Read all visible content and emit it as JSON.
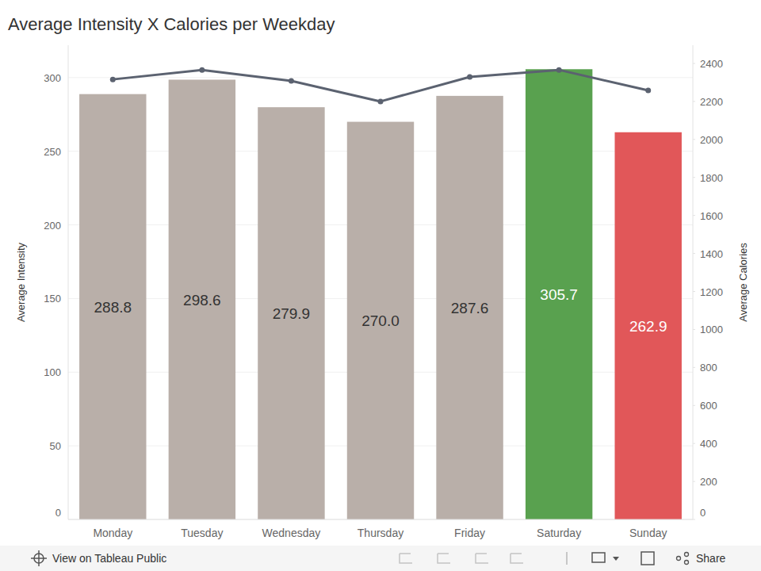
{
  "chart_data": {
    "type": "bar",
    "title": "Average Intensity X Calories per Weekday",
    "ylabel": "Average Intensity",
    "y2label": "Average Calories",
    "categories": [
      "Monday",
      "Tuesday",
      "Wednesday",
      "Thursday",
      "Friday",
      "Saturday",
      "Sunday"
    ],
    "series": [
      {
        "type": "bar",
        "colors": [
          "#b9afa9",
          "#b9afa9",
          "#b9afa9",
          "#b9afa9",
          "#b9afa9",
          "#59a14f",
          "#e15759"
        ],
        "values": [
          288.8,
          298.6,
          279.9,
          270.0,
          287.6,
          305.7,
          262.9
        ],
        "value_labels": [
          "288.8",
          "298.6",
          "279.9",
          "270.0",
          "287.6",
          "305.7",
          "262.9"
        ]
      },
      {
        "type": "line",
        "axis": "y2",
        "color": "#5b6270",
        "marker": "circle",
        "values": [
          2316,
          2366,
          2308,
          2200,
          2329,
          2366,
          2258
        ]
      }
    ],
    "ylim": [
      0,
      322
    ],
    "yticks": [
      0,
      50,
      100,
      150,
      200,
      250,
      300
    ],
    "y2lim": [
      0,
      2496
    ],
    "y2ticks": [
      0,
      200,
      400,
      600,
      800,
      1000,
      1200,
      1400,
      1600,
      1800,
      2000,
      2200,
      2400
    ],
    "grid": true,
    "data_labels": true
  },
  "toolbar": {
    "view_link": "View on Tableau Public",
    "share": "Share"
  }
}
